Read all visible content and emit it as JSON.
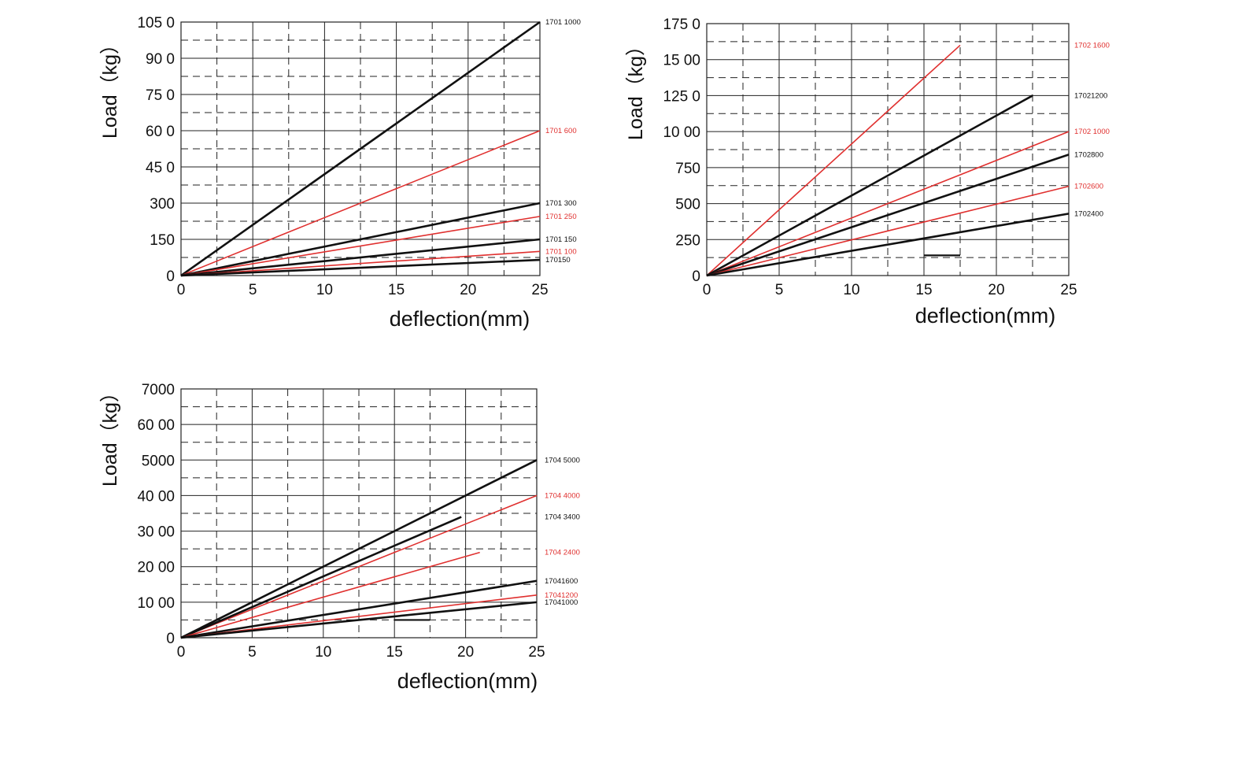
{
  "colors": {
    "black": "#111111",
    "red": "#e0302f",
    "grid": "#222222"
  },
  "chart_data": [
    {
      "type": "line",
      "title": "",
      "xlabel": "deflection(mm)",
      "ylabel": "Load（kg）",
      "xlim": [
        0,
        25
      ],
      "ylim": [
        0,
        1050
      ],
      "grid": true,
      "x_ticks": [
        0,
        5,
        10,
        15,
        20,
        25
      ],
      "x_tick_labels": [
        "0",
        "5",
        "10",
        "15",
        "20",
        "25"
      ],
      "y_ticks": [
        0,
        150,
        300,
        450,
        600,
        750,
        900,
        1050
      ],
      "y_tick_labels": [
        "0",
        "150",
        "300",
        "45 0",
        "60 0",
        "75 0",
        "90 0",
        "105 0"
      ],
      "series": [
        {
          "name": "1701 1000",
          "color": "black",
          "points": [
            [
              0,
              0
            ],
            [
              25,
              1050
            ]
          ]
        },
        {
          "name": "1701 600",
          "color": "red",
          "points": [
            [
              0,
              0
            ],
            [
              25,
              600
            ]
          ]
        },
        {
          "name": "1701 300",
          "color": "black",
          "points": [
            [
              0,
              0
            ],
            [
              25,
              300
            ]
          ]
        },
        {
          "name": "1701 250",
          "color": "red",
          "points": [
            [
              0,
              0
            ],
            [
              25,
              245
            ]
          ]
        },
        {
          "name": "1701 150",
          "color": "black",
          "points": [
            [
              0,
              0
            ],
            [
              25,
              150
            ]
          ]
        },
        {
          "name": "1701 100",
          "color": "red",
          "points": [
            [
              0,
              0
            ],
            [
              25,
              100
            ]
          ]
        },
        {
          "name": "170150",
          "color": "black",
          "points": [
            [
              0,
              0
            ],
            [
              25,
              65
            ]
          ]
        }
      ]
    },
    {
      "type": "line",
      "title": "",
      "xlabel": "deflection(mm)",
      "ylabel": "Load（kg）",
      "xlim": [
        0,
        25
      ],
      "ylim": [
        0,
        1750
      ],
      "grid": true,
      "x_ticks": [
        0,
        5,
        10,
        15,
        20,
        25
      ],
      "x_tick_labels": [
        "0",
        "5",
        "10",
        "15",
        "20",
        "25"
      ],
      "y_ticks": [
        0,
        250,
        500,
        750,
        1000,
        1250,
        1500,
        1750
      ],
      "y_tick_labels": [
        "0",
        "250",
        "500",
        "750",
        "10 00",
        "125 0",
        "15 00",
        "175 0"
      ],
      "series": [
        {
          "name": "1702 1600",
          "color": "red",
          "points": [
            [
              0,
              0
            ],
            [
              17.5,
              1600
            ]
          ]
        },
        {
          "name": "17021200",
          "color": "black",
          "points": [
            [
              0,
              0
            ],
            [
              22.5,
              1250
            ]
          ]
        },
        {
          "name": "1702 1000",
          "color": "red",
          "points": [
            [
              0,
              0
            ],
            [
              25,
              1000
            ]
          ]
        },
        {
          "name": "1702800",
          "color": "black",
          "points": [
            [
              0,
              0
            ],
            [
              25,
              840
            ]
          ]
        },
        {
          "name": "1702600",
          "color": "red",
          "points": [
            [
              0,
              0
            ],
            [
              25,
              620
            ]
          ]
        },
        {
          "name": "1702400",
          "color": "black",
          "points": [
            [
              0,
              0
            ],
            [
              25,
              430
            ]
          ]
        }
      ],
      "marks": [
        {
          "color": "black",
          "points": [
            [
              15,
              140
            ],
            [
              17.5,
              140
            ]
          ]
        }
      ]
    },
    {
      "type": "line",
      "title": "",
      "xlabel": "deflection(mm)",
      "ylabel": "Load（kg）",
      "xlim": [
        0,
        25
      ],
      "ylim": [
        0,
        7000
      ],
      "grid": true,
      "x_ticks": [
        0,
        5,
        10,
        15,
        20,
        25
      ],
      "x_tick_labels": [
        "0",
        "5",
        "10",
        "15",
        "20",
        "25"
      ],
      "y_ticks": [
        0,
        1000,
        2000,
        3000,
        4000,
        5000,
        6000,
        7000
      ],
      "y_tick_labels": [
        "0",
        "10 00",
        "20 00",
        "30 00",
        "40 00",
        "5000",
        "60 00",
        "7000"
      ],
      "series": [
        {
          "name": "1704 5000",
          "color": "black",
          "points": [
            [
              0,
              0
            ],
            [
              25,
              5000
            ]
          ]
        },
        {
          "name": "1704 4000",
          "color": "red",
          "points": [
            [
              0,
              0
            ],
            [
              25,
              4000
            ]
          ]
        },
        {
          "name": "1704 3400",
          "color": "black",
          "points": [
            [
              0,
              0
            ],
            [
              19.7,
              3400
            ]
          ]
        },
        {
          "name": "1704 2400",
          "color": "red",
          "points": [
            [
              0,
              0
            ],
            [
              21,
              2400
            ]
          ]
        },
        {
          "name": "17041600",
          "color": "black",
          "points": [
            [
              0,
              0
            ],
            [
              25,
              1600
            ]
          ]
        },
        {
          "name": "17041200",
          "color": "red",
          "points": [
            [
              0,
              0
            ],
            [
              25,
              1200
            ]
          ]
        },
        {
          "name": "17041000",
          "color": "black",
          "points": [
            [
              0,
              0
            ],
            [
              25,
              1000
            ]
          ]
        }
      ],
      "marks": [
        {
          "color": "black",
          "points": [
            [
              15,
              500
            ],
            [
              17.5,
              500
            ]
          ]
        }
      ]
    }
  ]
}
